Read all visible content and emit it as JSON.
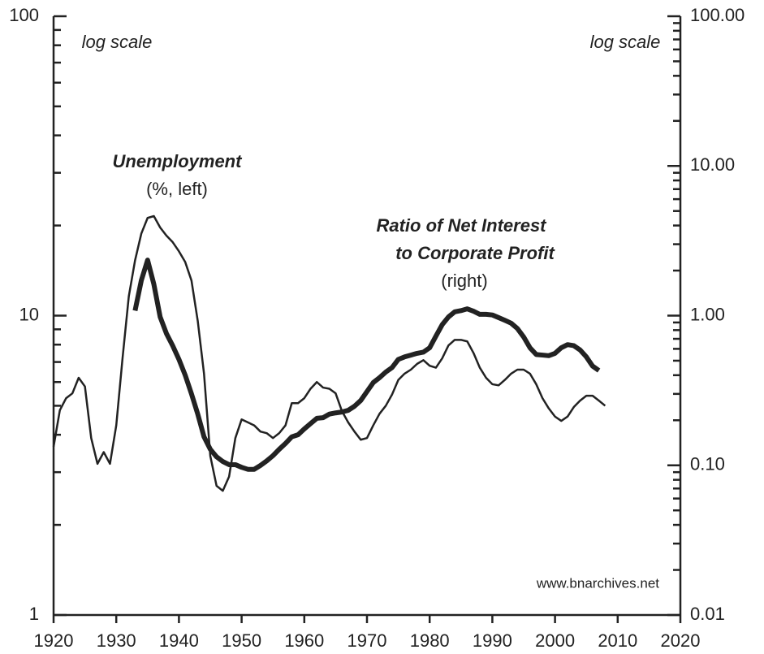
{
  "chart_data": {
    "type": "line",
    "annotations": [
      "log scale",
      "log scale",
      "Unemployment",
      "(%, left)",
      "Ratio of Net Interest",
      "to Corporate Profit",
      "(right)",
      "www.bnarchives.net"
    ],
    "x": [
      1920,
      1921,
      1922,
      1923,
      1924,
      1925,
      1926,
      1927,
      1928,
      1929,
      1930,
      1931,
      1932,
      1933,
      1934,
      1935,
      1936,
      1937,
      1938,
      1939,
      1940,
      1941,
      1942,
      1943,
      1944,
      1945,
      1946,
      1947,
      1948,
      1949,
      1950,
      1951,
      1952,
      1953,
      1954,
      1955,
      1956,
      1957,
      1958,
      1959,
      1960,
      1961,
      1962,
      1963,
      1964,
      1965,
      1966,
      1967,
      1968,
      1969,
      1970,
      1971,
      1972,
      1973,
      1974,
      1975,
      1976,
      1977,
      1978,
      1979,
      1980,
      1981,
      1982,
      1983,
      1984,
      1985,
      1986,
      1987,
      1988,
      1989,
      1990,
      1991,
      1992,
      1993,
      1994,
      1995,
      1996,
      1997,
      1998,
      1999,
      2000,
      2001,
      2002,
      2003,
      2004,
      2005,
      2006,
      2007,
      2008
    ],
    "series": [
      {
        "color": "#222222",
        "width": 2.5,
        "axis": "y",
        "values": [
          3.65,
          4.83,
          5.3,
          5.5,
          6.2,
          5.8,
          3.9,
          3.2,
          3.5,
          3.2,
          4.3,
          7.2,
          11.6,
          15.3,
          18.8,
          21.2,
          21.5,
          19.7,
          18.5,
          17.6,
          16.4,
          15.1,
          13.1,
          9.6,
          6.4,
          3.4,
          2.7,
          2.6,
          2.9,
          3.9,
          4.5,
          4.4,
          4.3,
          4.1,
          4.05,
          3.9,
          4.05,
          4.3,
          5.1,
          5.1,
          5.3,
          5.7,
          6.0,
          5.75,
          5.7,
          5.5,
          4.8,
          4.4,
          4.1,
          3.85,
          3.9,
          4.3,
          4.7,
          5.0,
          5.45,
          6.1,
          6.4,
          6.6,
          6.9,
          7.1,
          6.8,
          6.7,
          7.2,
          7.95,
          8.3,
          8.3,
          8.2,
          7.5,
          6.7,
          6.2,
          5.9,
          5.85,
          6.1,
          6.4,
          6.6,
          6.6,
          6.4,
          5.9,
          5.3,
          4.9,
          4.6,
          4.45,
          4.6,
          4.95,
          5.2,
          5.4,
          5.4,
          5.2,
          5.0
        ]
      },
      {
        "color": "#222222",
        "width": 6,
        "axis": "y2",
        "values": [
          null,
          null,
          null,
          null,
          null,
          null,
          null,
          null,
          null,
          null,
          null,
          null,
          null,
          1.08,
          1.72,
          2.35,
          1.62,
          0.98,
          0.76,
          0.63,
          0.51,
          0.4,
          0.3,
          0.22,
          0.155,
          0.128,
          0.114,
          0.106,
          0.101,
          0.101,
          0.097,
          0.094,
          0.094,
          0.0998,
          0.107,
          0.116,
          0.128,
          0.14,
          0.155,
          0.16,
          0.175,
          0.19,
          0.206,
          0.208,
          0.22,
          0.224,
          0.227,
          0.233,
          0.248,
          0.271,
          0.311,
          0.357,
          0.385,
          0.42,
          0.45,
          0.51,
          0.53,
          0.545,
          0.56,
          0.57,
          0.61,
          0.73,
          0.87,
          0.98,
          1.06,
          1.08,
          1.11,
          1.07,
          1.02,
          1.02,
          1.01,
          0.97,
          0.93,
          0.89,
          0.82,
          0.72,
          0.61,
          0.55,
          0.545,
          0.54,
          0.56,
          0.61,
          0.64,
          0.63,
          0.59,
          0.53,
          0.46,
          0.43,
          null
        ]
      }
    ],
    "xlim": [
      1920,
      2020
    ],
    "xticks": [
      1920,
      1930,
      1940,
      1950,
      1960,
      1970,
      1980,
      1990,
      2000,
      2010,
      2020
    ],
    "ylim": [
      1,
      100
    ],
    "ylog": true,
    "yticks": [
      1,
      10,
      100
    ],
    "yminorticks": [
      2,
      3,
      4,
      5,
      6,
      7,
      8,
      9,
      20,
      30,
      40,
      50,
      60,
      70,
      80,
      90
    ],
    "y2lim": [
      0.01,
      100
    ],
    "y2log": true,
    "y2ticks": [
      {
        "value": 0.01,
        "label": "0.01"
      },
      {
        "value": 0.1,
        "label": "0.10"
      },
      {
        "value": 1,
        "label": "1.00"
      },
      {
        "value": 10,
        "label": "10.00"
      },
      {
        "value": 100,
        "label": "100.00"
      }
    ],
    "y2minorticks": [
      0.02,
      0.03,
      0.04,
      0.05,
      0.06,
      0.07,
      0.08,
      0.09,
      0.2,
      0.3,
      0.4,
      0.5,
      0.6,
      0.7,
      0.8,
      0.9,
      2,
      3,
      4,
      5,
      6,
      7,
      8,
      9,
      20,
      30,
      40,
      50,
      60,
      70,
      80,
      90
    ]
  }
}
